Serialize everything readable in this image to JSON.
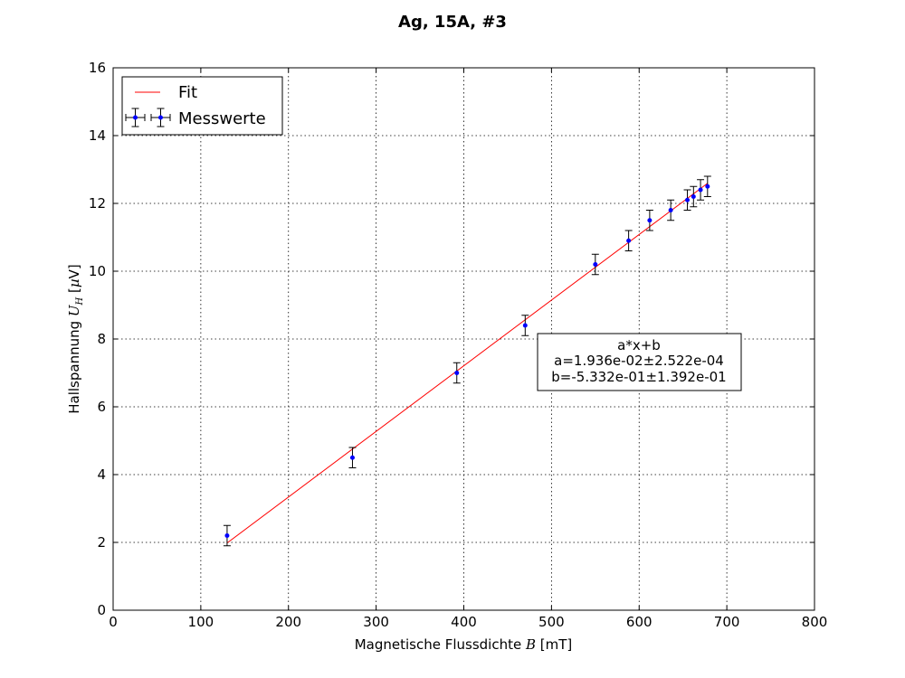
{
  "chart_data": {
    "type": "scatter",
    "title": "Ag, 15A, #3",
    "xlabel": "Magnetische Flussdichte B [mT]",
    "ylabel": "Hallspannung U_H [µV]",
    "xlim": [
      0,
      800
    ],
    "ylim": [
      0,
      16
    ],
    "xticks": [
      "0",
      "100",
      "200",
      "300",
      "400",
      "500",
      "600",
      "700",
      "800"
    ],
    "yticks": [
      "0",
      "2",
      "4",
      "6",
      "8",
      "10",
      "12",
      "14",
      "16"
    ],
    "grid": true,
    "legend_position": "top-left",
    "colors": {
      "fit": "#ff0000",
      "points": "#0000ff",
      "errorbars": "#000000"
    },
    "series": [
      {
        "name": "Messwerte",
        "kind": "errorbar",
        "x": [
          130,
          273,
          392,
          470,
          550,
          588,
          612,
          636,
          655,
          662,
          670,
          678
        ],
        "y": [
          2.2,
          4.5,
          7.0,
          8.4,
          10.2,
          10.9,
          11.5,
          11.8,
          12.1,
          12.2,
          12.4,
          12.5
        ],
        "yerr": [
          0.3,
          0.3,
          0.3,
          0.3,
          0.3,
          0.3,
          0.3,
          0.3,
          0.3,
          0.3,
          0.3,
          0.3
        ],
        "xerr": [
          1,
          1,
          1,
          1,
          1,
          1,
          1,
          1,
          1,
          1,
          1,
          1
        ]
      },
      {
        "name": "Fit",
        "kind": "line",
        "slope": 0.01936,
        "intercept": -0.5332,
        "x_range": [
          130,
          678
        ]
      }
    ],
    "annotation": {
      "lines": [
        "a*x+b",
        "a=1.936e-02±2.522e-04",
        "b=-5.332e-01±1.392e-01"
      ]
    }
  }
}
